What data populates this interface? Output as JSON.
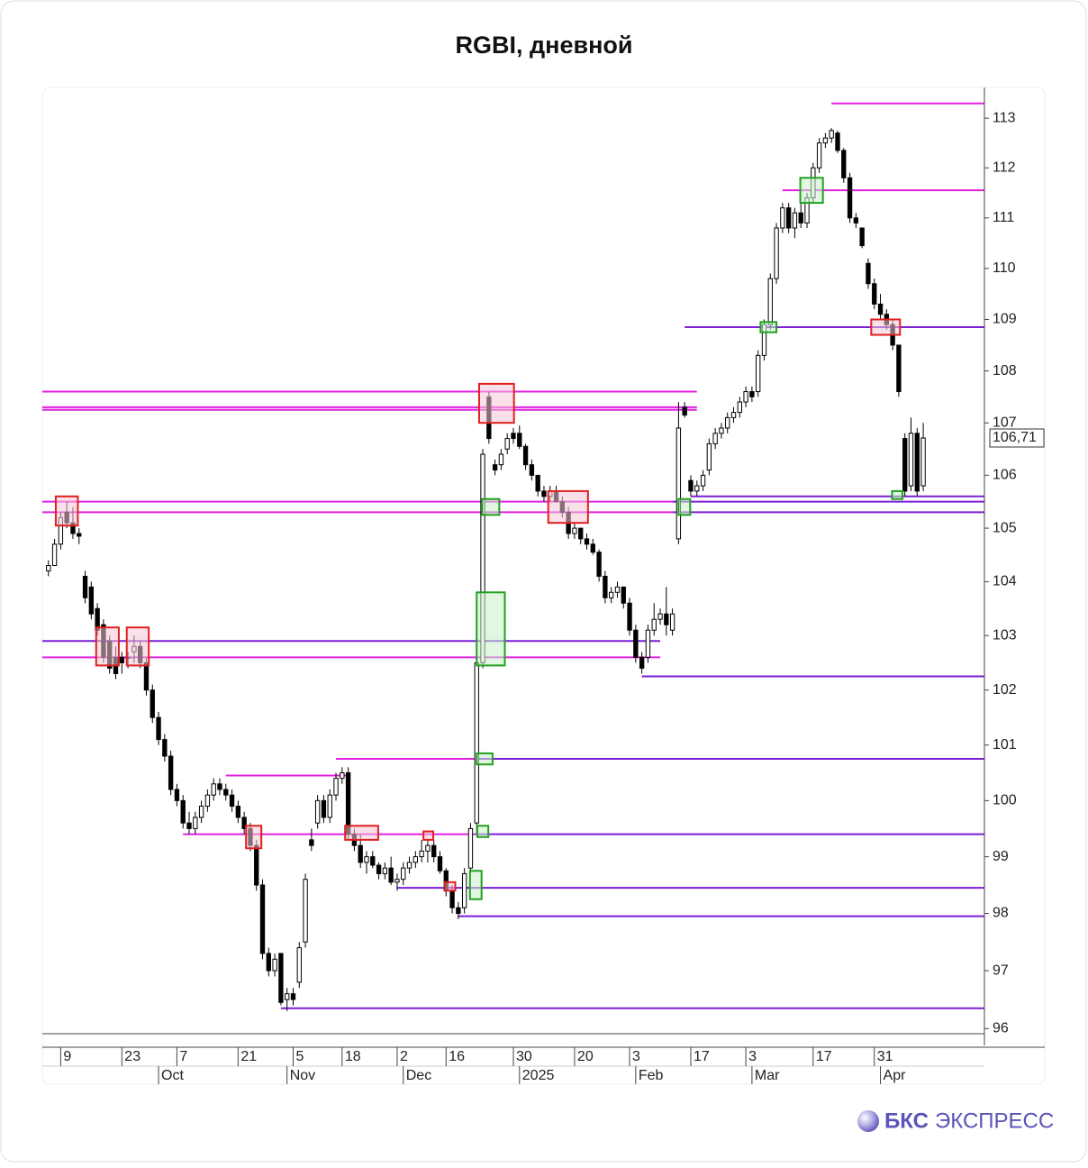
{
  "chart_data": {
    "type": "candlestick",
    "title": "RGBI, дневной",
    "log_scale": true,
    "up_color": "#ffffff",
    "down_color": "#000000",
    "ylim": [
      95.71,
      113.57
    ],
    "yticks": [
      96,
      97,
      98,
      99,
      100,
      101,
      102,
      103,
      104,
      105,
      106,
      107,
      108,
      109,
      110,
      111,
      112,
      113
    ],
    "xlim": [
      -1,
      153
    ],
    "xticks": [
      {
        "value": 2,
        "label": "9"
      },
      {
        "value": 12,
        "label": "23"
      },
      {
        "value": 21,
        "label": "7"
      },
      {
        "value": 31,
        "label": "21"
      },
      {
        "value": 40,
        "label": "5"
      },
      {
        "value": 48,
        "label": "18"
      },
      {
        "value": 57,
        "label": "2"
      },
      {
        "value": 65,
        "label": "16"
      },
      {
        "value": 76,
        "label": "30"
      },
      {
        "value": 86,
        "label": "20"
      },
      {
        "value": 95,
        "label": "3"
      },
      {
        "value": 105,
        "label": "17"
      },
      {
        "value": 114,
        "label": "3"
      },
      {
        "value": 125,
        "label": "17"
      },
      {
        "value": 135,
        "label": "31"
      }
    ],
    "month_ticks": [
      {
        "value": 18,
        "label": "Oct"
      },
      {
        "value": 39,
        "label": "Nov"
      },
      {
        "value": 58,
        "label": "Dec"
      },
      {
        "value": 77,
        "label": "2025"
      },
      {
        "value": 96,
        "label": "Feb"
      },
      {
        "value": 115,
        "label": "Mar"
      },
      {
        "value": 136,
        "label": "Apr"
      }
    ],
    "ohlc": [
      [
        104.2,
        104.4,
        104.1,
        104.3
      ],
      [
        104.3,
        104.8,
        104.3,
        104.7
      ],
      [
        104.7,
        105.3,
        104.6,
        105.2
      ],
      [
        105.3,
        105.5,
        105.0,
        105.1
      ],
      [
        105.1,
        105.4,
        104.8,
        104.9
      ],
      [
        104.9,
        105.0,
        104.7,
        104.85
      ],
      [
        104.1,
        104.2,
        103.6,
        103.7
      ],
      [
        103.9,
        104.0,
        103.3,
        103.4
      ],
      [
        103.5,
        103.6,
        103.0,
        103.1
      ],
      [
        103.2,
        103.3,
        102.5,
        102.6
      ],
      [
        102.9,
        103.0,
        102.3,
        102.4
      ],
      [
        102.6,
        102.8,
        102.2,
        102.3
      ],
      [
        102.6,
        102.7,
        102.3,
        102.5
      ],
      [
        102.6,
        102.7,
        102.4,
        102.6
      ],
      [
        102.7,
        103.0,
        102.5,
        102.8
      ],
      [
        102.8,
        102.9,
        102.4,
        102.5
      ],
      [
        102.5,
        102.6,
        101.9,
        102.0
      ],
      [
        102.0,
        102.1,
        101.4,
        101.5
      ],
      [
        101.5,
        101.6,
        101.0,
        101.1
      ],
      [
        101.1,
        101.2,
        100.7,
        100.8
      ],
      [
        100.8,
        100.9,
        100.1,
        100.2
      ],
      [
        100.2,
        100.3,
        99.9,
        100.0
      ],
      [
        100.0,
        100.1,
        99.5,
        99.6
      ],
      [
        99.6,
        99.8,
        99.4,
        99.5
      ],
      [
        99.5,
        99.8,
        99.4,
        99.7
      ],
      [
        99.7,
        100.0,
        99.6,
        99.9
      ],
      [
        99.9,
        100.2,
        99.8,
        100.1
      ],
      [
        100.1,
        100.4,
        100.0,
        100.3
      ],
      [
        100.3,
        100.4,
        100.1,
        100.2
      ],
      [
        100.2,
        100.3,
        100.0,
        100.1
      ],
      [
        100.1,
        100.2,
        99.8,
        99.9
      ],
      [
        99.9,
        100.0,
        99.6,
        99.7
      ],
      [
        99.7,
        99.8,
        99.4,
        99.5
      ],
      [
        99.5,
        99.6,
        99.1,
        99.2
      ],
      [
        99.2,
        99.3,
        98.4,
        98.5
      ],
      [
        98.5,
        98.6,
        97.2,
        97.3
      ],
      [
        97.3,
        97.4,
        96.9,
        97.0
      ],
      [
        97.0,
        97.3,
        96.9,
        97.2
      ],
      [
        97.3,
        97.3,
        96.4,
        96.45
      ],
      [
        96.5,
        96.7,
        96.3,
        96.6
      ],
      [
        96.6,
        96.7,
        96.4,
        96.5
      ],
      [
        96.8,
        97.5,
        96.7,
        97.4
      ],
      [
        97.5,
        98.7,
        97.4,
        98.6
      ],
      [
        99.3,
        99.5,
        99.1,
        99.2
      ],
      [
        99.6,
        100.1,
        99.5,
        100.0
      ],
      [
        100.0,
        100.1,
        99.6,
        99.7
      ],
      [
        99.7,
        100.2,
        99.6,
        100.1
      ],
      [
        100.1,
        100.5,
        100.0,
        100.4
      ],
      [
        100.4,
        100.6,
        100.3,
        100.5
      ],
      [
        100.5,
        100.6,
        99.3,
        99.4
      ],
      [
        99.4,
        99.5,
        99.1,
        99.2
      ],
      [
        99.2,
        99.4,
        98.8,
        98.9
      ],
      [
        98.9,
        99.1,
        98.7,
        99.0
      ],
      [
        99.0,
        99.1,
        98.8,
        98.85
      ],
      [
        98.85,
        98.9,
        98.6,
        98.7
      ],
      [
        98.7,
        98.9,
        98.6,
        98.8
      ],
      [
        98.8,
        99.0,
        98.5,
        98.55
      ],
      [
        98.55,
        98.7,
        98.4,
        98.6
      ],
      [
        98.6,
        98.9,
        98.5,
        98.8
      ],
      [
        98.8,
        99.0,
        98.7,
        98.9
      ],
      [
        98.9,
        99.1,
        98.8,
        99.0
      ],
      [
        99.0,
        99.3,
        98.9,
        99.1
      ],
      [
        99.1,
        99.3,
        98.9,
        99.2
      ],
      [
        99.2,
        99.3,
        98.9,
        99.0
      ],
      [
        99.0,
        99.1,
        98.7,
        98.75
      ],
      [
        98.75,
        98.8,
        98.3,
        98.4
      ],
      [
        98.4,
        98.5,
        98.0,
        98.1
      ],
      [
        98.1,
        98.2,
        97.9,
        98.0
      ],
      [
        98.1,
        98.8,
        98.0,
        98.7
      ],
      [
        98.8,
        99.6,
        98.7,
        99.5
      ],
      [
        99.6,
        102.6,
        99.4,
        102.5
      ],
      [
        102.5,
        106.5,
        102.4,
        106.4
      ],
      [
        107.5,
        107.6,
        106.6,
        106.7
      ],
      [
        106.2,
        106.3,
        106.0,
        106.1
      ],
      [
        106.2,
        106.5,
        106.1,
        106.4
      ],
      [
        106.5,
        106.8,
        106.4,
        106.7
      ],
      [
        106.8,
        106.9,
        106.6,
        106.7
      ],
      [
        106.8,
        106.95,
        106.5,
        106.55
      ],
      [
        106.55,
        106.6,
        106.1,
        106.2
      ],
      [
        106.2,
        106.3,
        105.9,
        106.0
      ],
      [
        106.0,
        106.0,
        105.6,
        105.7
      ],
      [
        105.7,
        105.8,
        105.5,
        105.6
      ],
      [
        105.6,
        105.8,
        105.5,
        105.7
      ],
      [
        105.7,
        105.8,
        105.5,
        105.5
      ],
      [
        105.5,
        105.6,
        105.2,
        105.3
      ],
      [
        105.3,
        105.4,
        104.8,
        104.9
      ],
      [
        104.9,
        105.1,
        104.8,
        105.0
      ],
      [
        105.0,
        105.0,
        104.7,
        104.8
      ],
      [
        104.8,
        104.9,
        104.6,
        104.7
      ],
      [
        104.7,
        104.8,
        104.5,
        104.55
      ],
      [
        104.55,
        104.6,
        104.0,
        104.1
      ],
      [
        104.1,
        104.2,
        103.6,
        103.7
      ],
      [
        103.7,
        103.9,
        103.6,
        103.8
      ],
      [
        103.8,
        104.0,
        103.7,
        103.9
      ],
      [
        103.9,
        103.9,
        103.5,
        103.6
      ],
      [
        103.6,
        103.7,
        103.0,
        103.1
      ],
      [
        103.1,
        103.2,
        102.5,
        102.6
      ],
      [
        102.6,
        102.7,
        102.3,
        102.4
      ],
      [
        102.6,
        103.2,
        102.5,
        103.1
      ],
      [
        103.1,
        103.6,
        103.0,
        103.3
      ],
      [
        103.3,
        103.5,
        103.2,
        103.4
      ],
      [
        103.4,
        103.9,
        103.0,
        103.2
      ],
      [
        103.1,
        103.5,
        103.0,
        103.4
      ],
      [
        104.8,
        107.4,
        104.7,
        106.9
      ],
      [
        107.3,
        107.4,
        107.1,
        107.15
      ],
      [
        105.9,
        106.0,
        105.6,
        105.7
      ],
      [
        105.7,
        105.9,
        105.6,
        105.8
      ],
      [
        105.8,
        106.1,
        105.7,
        106.0
      ],
      [
        106.1,
        106.7,
        106.0,
        106.6
      ],
      [
        106.6,
        106.9,
        106.5,
        106.8
      ],
      [
        106.8,
        107.0,
        106.7,
        106.9
      ],
      [
        106.9,
        107.2,
        106.8,
        107.1
      ],
      [
        107.1,
        107.3,
        107.0,
        107.2
      ],
      [
        107.2,
        107.5,
        107.1,
        107.4
      ],
      [
        107.4,
        107.7,
        107.3,
        107.6
      ],
      [
        107.6,
        107.7,
        107.4,
        107.5
      ],
      [
        107.6,
        108.4,
        107.5,
        108.3
      ],
      [
        108.3,
        109.0,
        108.2,
        108.9
      ],
      [
        108.9,
        109.9,
        108.8,
        109.8
      ],
      [
        109.8,
        110.9,
        109.7,
        110.8
      ],
      [
        110.8,
        111.3,
        110.7,
        111.2
      ],
      [
        111.2,
        111.3,
        110.7,
        110.8
      ],
      [
        110.8,
        111.2,
        110.6,
        111.1
      ],
      [
        111.1,
        111.3,
        110.8,
        110.9
      ],
      [
        110.9,
        111.5,
        110.8,
        111.4
      ],
      [
        111.4,
        112.1,
        111.3,
        112.0
      ],
      [
        112.0,
        112.6,
        111.9,
        112.5
      ],
      [
        112.5,
        112.7,
        112.4,
        112.6
      ],
      [
        112.6,
        112.8,
        112.5,
        112.75
      ],
      [
        112.7,
        112.75,
        112.3,
        112.35
      ],
      [
        112.35,
        112.4,
        111.7,
        111.8
      ],
      [
        111.8,
        111.9,
        110.9,
        111.0
      ],
      [
        111.0,
        111.1,
        110.8,
        110.9
      ],
      [
        110.8,
        110.8,
        110.4,
        110.45
      ],
      [
        110.1,
        110.2,
        109.6,
        109.7
      ],
      [
        109.7,
        109.8,
        109.2,
        109.3
      ],
      [
        109.3,
        109.5,
        109.0,
        109.1
      ],
      [
        109.1,
        109.2,
        108.8,
        108.9
      ],
      [
        108.9,
        109.0,
        108.4,
        108.5
      ],
      [
        108.5,
        108.5,
        107.5,
        107.6
      ],
      [
        106.7,
        106.8,
        105.6,
        105.7
      ],
      [
        105.8,
        107.1,
        105.7,
        106.8
      ],
      [
        106.8,
        106.9,
        105.6,
        105.7
      ],
      [
        105.8,
        107.0,
        105.7,
        106.71
      ]
    ],
    "last": 106.71,
    "last_label": "106,71",
    "levels": [
      {
        "price": 113.3,
        "from": 128,
        "to": null,
        "color": "#e020e0"
      },
      {
        "price": 111.55,
        "from": 120,
        "to": null,
        "color": "#e020e0"
      },
      {
        "price": 108.85,
        "from": 104,
        "to": null,
        "color": "#7a1fd6"
      },
      {
        "price": 107.6,
        "from": -1,
        "to": 106,
        "color": "#e020e0"
      },
      {
        "price": 107.3,
        "from": -1,
        "to": 106,
        "color": "#e020e0"
      },
      {
        "price": 107.25,
        "from": -1,
        "to": 106,
        "color": "#e020e0"
      },
      {
        "price": 105.6,
        "from": 105,
        "to": null,
        "color": "#7a1fd6"
      },
      {
        "price": 105.5,
        "from": -1,
        "to": 102,
        "color": "#e020e0"
      },
      {
        "price": 105.5,
        "from": 102,
        "to": null,
        "color": "#7a1fd6"
      },
      {
        "price": 105.3,
        "from": -1,
        "to": 102,
        "color": "#e020e0"
      },
      {
        "price": 105.3,
        "from": 102,
        "to": null,
        "color": "#7a1fd6"
      },
      {
        "price": 102.9,
        "from": -1,
        "to": 100,
        "color": "#7a1fd6"
      },
      {
        "price": 102.6,
        "from": -1,
        "to": 100,
        "color": "#e020e0"
      },
      {
        "price": 102.25,
        "from": 97,
        "to": null,
        "color": "#7a1fd6"
      },
      {
        "price": 100.75,
        "from": 47,
        "to": 70,
        "color": "#e020e0"
      },
      {
        "price": 100.75,
        "from": 70,
        "to": null,
        "color": "#7a1fd6"
      },
      {
        "price": 100.45,
        "from": 29,
        "to": 49,
        "color": "#e020e0"
      },
      {
        "price": 99.4,
        "from": 22,
        "to": 70,
        "color": "#e020e0"
      },
      {
        "price": 99.4,
        "from": 70,
        "to": null,
        "color": "#7a1fd6"
      },
      {
        "price": 98.45,
        "from": 57,
        "to": null,
        "color": "#7a1fd6"
      },
      {
        "price": 97.95,
        "from": 67,
        "to": null,
        "color": "#7a1fd6"
      },
      {
        "price": 96.35,
        "from": 38,
        "to": null,
        "color": "#7a1fd6"
      }
    ],
    "boxes": [
      {
        "from": 1.2,
        "to": 4.8,
        "low": 105.05,
        "high": 105.6,
        "color": "#e02020",
        "fill": "#f6c6d6"
      },
      {
        "from": 7.8,
        "to": 11.5,
        "low": 102.45,
        "high": 103.15,
        "color": "#e02020",
        "fill": "#f6c6d6"
      },
      {
        "from": 12.8,
        "to": 16.4,
        "low": 102.45,
        "high": 103.15,
        "color": "#e02020",
        "fill": "#f6c6d6"
      },
      {
        "from": 32.3,
        "to": 34.8,
        "low": 99.15,
        "high": 99.55,
        "color": "#e02020",
        "fill": "#f6c6d6"
      },
      {
        "from": 48.5,
        "to": 53.9,
        "low": 99.3,
        "high": 99.55,
        "color": "#e02020",
        "fill": "#f6c6d6"
      },
      {
        "from": 61.3,
        "to": 62.9,
        "low": 99.3,
        "high": 99.45,
        "color": "#e02020",
        "fill": "#f6c6d6"
      },
      {
        "from": 64.8,
        "to": 66.5,
        "low": 98.4,
        "high": 98.55,
        "color": "#e02020",
        "fill": "#f6c6d6"
      },
      {
        "from": 70.4,
        "to": 76.1,
        "low": 107.0,
        "high": 107.75,
        "color": "#e02020",
        "fill": "#f6c6d6"
      },
      {
        "from": 81.7,
        "to": 88.2,
        "low": 105.1,
        "high": 105.7,
        "color": "#e02020",
        "fill": "#f6c6d6"
      },
      {
        "from": 134.5,
        "to": 139.2,
        "low": 108.7,
        "high": 109.0,
        "color": "#e02020",
        "fill": "#f6c6d6"
      },
      {
        "from": 70.9,
        "to": 73.7,
        "low": 105.25,
        "high": 105.55,
        "color": "#20a020",
        "fill": "#c8f0c8"
      },
      {
        "from": 70.0,
        "to": 74.6,
        "low": 102.45,
        "high": 103.8,
        "color": "#20a020",
        "fill": "#c8f0c8"
      },
      {
        "from": 70.0,
        "to": 72.6,
        "low": 100.65,
        "high": 100.85,
        "color": "#20a020",
        "fill": "#c8f0c8"
      },
      {
        "from": 70.1,
        "to": 71.9,
        "low": 99.35,
        "high": 99.55,
        "color": "#20a020",
        "fill": "#c8f0c8"
      },
      {
        "from": 68.9,
        "to": 70.8,
        "low": 98.25,
        "high": 98.75,
        "color": "#20a020",
        "fill": "#c8f0c8"
      },
      {
        "from": 103.0,
        "to": 104.9,
        "low": 105.25,
        "high": 105.55,
        "color": "#20a020",
        "fill": "#c8f0c8"
      },
      {
        "from": 116.4,
        "to": 119.0,
        "low": 108.75,
        "high": 108.95,
        "color": "#20a020",
        "fill": "#c8f0c8"
      },
      {
        "from": 122.9,
        "to": 126.6,
        "low": 111.3,
        "high": 111.8,
        "color": "#20a020",
        "fill": "#c8f0c8"
      },
      {
        "from": 137.9,
        "to": 139.6,
        "low": 105.55,
        "high": 105.7,
        "color": "#20a020",
        "fill": "#c8f0c8"
      }
    ]
  },
  "logo": {
    "brand": "БКС",
    "product": "ЭКСПРЕСС"
  }
}
